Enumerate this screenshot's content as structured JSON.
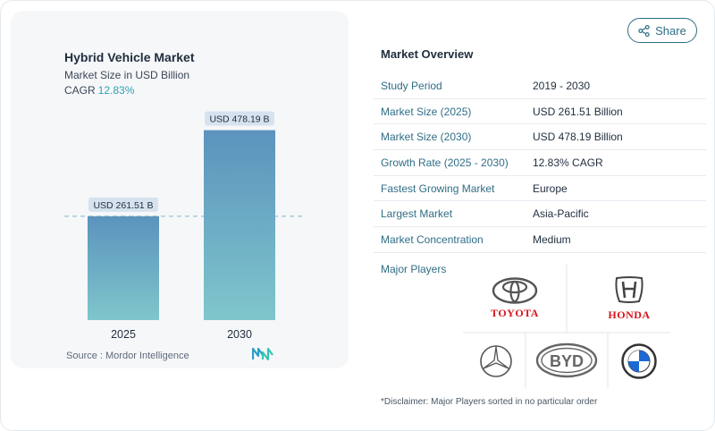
{
  "chart_data": {
    "type": "bar",
    "title": "Hybrid Vehicle Market",
    "subtitle": "Market Size in USD Billion",
    "cagr_label": "CAGR",
    "cagr_value": "12.83%",
    "categories": [
      "2025",
      "2030"
    ],
    "values": [
      261.51,
      478.19
    ],
    "data_labels": [
      "USD 261.51 B",
      "USD 478.19 B"
    ],
    "ylim": [
      0,
      500
    ],
    "reference_line": 261.51,
    "grid": false,
    "colors": {
      "bar_top": "#5b93bd",
      "bar_bottom": "#7fc6cc",
      "label_bg": "#d6e3ee",
      "dash": "#7fb5c6"
    }
  },
  "source": "Source :  Mordor Intelligence",
  "share": {
    "label": "Share"
  },
  "overview": {
    "title": "Market Overview",
    "rows": [
      {
        "key": "Study Period",
        "value": "2019 - 2030"
      },
      {
        "key": "Market Size (2025)",
        "value": "USD 261.51 Billion"
      },
      {
        "key": "Market Size (2030)",
        "value": "USD 478.19 Billion"
      },
      {
        "key": "Growth Rate (2025 - 2030)",
        "value": "12.83% CAGR"
      },
      {
        "key": "Fastest Growing Market",
        "value": "Europe"
      },
      {
        "key": "Largest Market",
        "value": "Asia-Pacific"
      },
      {
        "key": "Market Concentration",
        "value": "Medium"
      }
    ]
  },
  "players": {
    "label": "Major Players",
    "logos": [
      "TOYOTA",
      "HONDA",
      "mercedes-benz-logo",
      "byd-logo",
      "bmw-logo"
    ],
    "toyota_word": "TOYOTA",
    "honda_word": "HONDA",
    "byd_word": "BYD"
  },
  "disclaimer": "*Disclaimer: Major Players sorted in no particular order"
}
